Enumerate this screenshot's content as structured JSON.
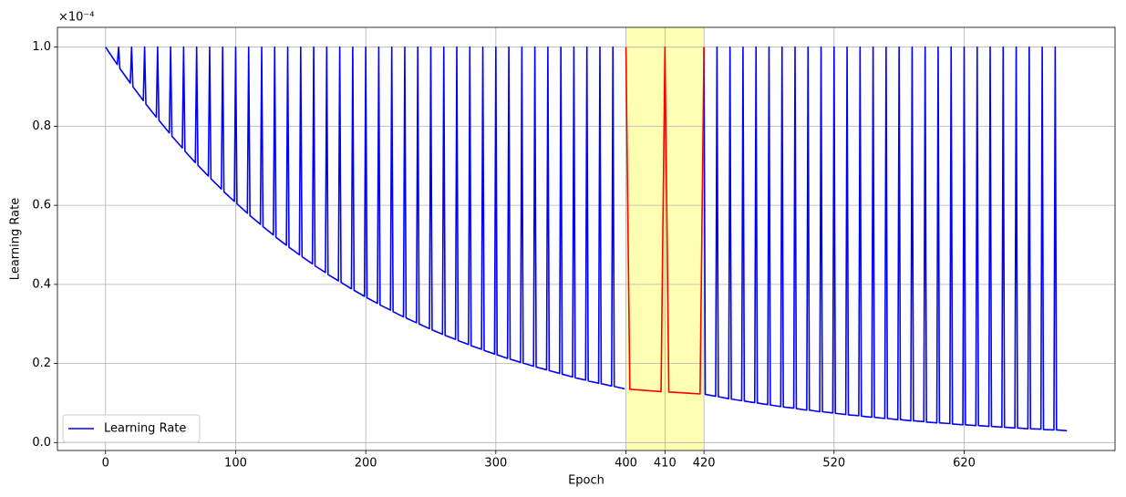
{
  "chart_data": {
    "type": "line",
    "xlabel": "Epoch",
    "ylabel": "Learning Rate",
    "y_offset_label": "×10⁻⁴",
    "xlim": [
      -37,
      776
    ],
    "ylim": [
      -0.02,
      1.05
    ],
    "xticks": [
      0,
      100,
      200,
      300,
      400,
      {
        "value": 430,
        "label": "410"
      },
      {
        "value": 460,
        "label": "420"
      },
      {
        "value": 560,
        "label": "520"
      },
      {
        "value": 660,
        "label": "620"
      }
    ],
    "yticks": [
      {
        "value": 0,
        "label": "0.0"
      },
      0.2,
      0.4,
      0.6,
      0.8,
      {
        "value": 1,
        "label": "1.0"
      }
    ],
    "grid": true,
    "legend": "lower left",
    "highlight": {
      "xlim": [
        400,
        460
      ],
      "color": "#ffffb3"
    },
    "series": [
      {
        "name": "Learning Rate",
        "color": "#0000ff",
        "x": [
          0,
          1,
          9,
          10,
          11,
          19,
          20,
          21,
          29,
          30,
          31,
          39,
          40,
          41,
          49,
          50,
          51,
          59,
          60,
          61,
          69,
          70,
          71,
          79,
          80,
          81,
          89,
          90,
          91,
          99,
          100,
          101,
          109,
          110,
          111,
          119,
          120,
          121,
          129,
          130,
          131,
          139,
          140,
          141,
          149,
          150,
          151,
          159,
          160,
          161,
          169,
          170,
          171,
          179,
          180,
          181,
          189,
          190,
          191,
          199,
          200,
          201,
          209,
          210,
          211,
          219,
          220,
          221,
          229,
          230,
          231,
          239,
          240,
          241,
          249,
          250,
          251,
          259,
          260,
          261,
          269,
          270,
          271,
          279,
          280,
          281,
          289,
          290,
          291,
          299,
          300,
          301,
          309,
          310,
          311,
          319,
          320,
          321,
          329,
          330,
          331,
          339,
          340,
          341,
          349,
          350,
          351,
          359,
          360,
          361,
          369,
          370,
          371,
          379,
          380,
          381,
          389,
          390,
          391,
          399,
          430,
          460,
          461,
          469,
          470,
          471,
          479,
          480,
          481,
          489,
          490,
          491,
          499,
          500,
          501,
          509,
          510,
          511,
          519,
          520,
          521,
          529,
          530,
          531,
          539,
          540,
          541,
          549,
          550,
          551,
          559,
          560,
          561,
          569,
          570,
          571,
          579,
          580,
          581,
          589,
          590,
          591,
          599,
          600,
          601,
          609,
          610,
          611,
          619,
          620,
          621,
          629,
          630,
          631,
          639,
          640,
          641,
          649,
          650,
          651,
          659,
          660,
          661,
          669,
          670,
          671,
          679,
          680,
          681,
          689,
          690,
          691,
          699,
          700,
          701,
          709,
          710,
          711,
          719,
          720,
          721,
          729,
          730,
          731,
          739
        ],
        "values": [
          1,
          0.995,
          0.956,
          1,
          0.946,
          0.909,
          1,
          0.9,
          0.865,
          1,
          0.856,
          0.823,
          1,
          0.815,
          0.783,
          1,
          0.775,
          0.745,
          1,
          0.737,
          0.708,
          1,
          0.701,
          0.674,
          1,
          0.667,
          0.641,
          1,
          0.634,
          0.61,
          1,
          0.604,
          0.58,
          1,
          0.574,
          0.552,
          1,
          0.546,
          0.525,
          1,
          0.519,
          0.499,
          1,
          0.494,
          0.475,
          1,
          0.47,
          0.452,
          1,
          0.447,
          0.43,
          1,
          0.425,
          0.409,
          1,
          0.405,
          0.389,
          1,
          0.385,
          0.37,
          1,
          0.366,
          0.352,
          1,
          0.348,
          0.335,
          1,
          0.331,
          0.318,
          1,
          0.315,
          0.303,
          1,
          0.3,
          0.288,
          1,
          0.285,
          0.274,
          1,
          0.271,
          0.261,
          1,
          0.258,
          0.248,
          1,
          0.245,
          0.236,
          1,
          0.233,
          0.224,
          1,
          0.222,
          0.213,
          1,
          0.211,
          0.203,
          1,
          0.201,
          0.193,
          1,
          0.191,
          0.184,
          1,
          0.182,
          0.175,
          1,
          0.173,
          0.166,
          1,
          0.164,
          0.158,
          1,
          0.156,
          0.15,
          1,
          0.149,
          0.143,
          1,
          0.142,
          0.136,
          null,
          1,
          0.122,
          0.117,
          1,
          0.116,
          0.111,
          1,
          0.11,
          0.106,
          1,
          0.105,
          0.101,
          1,
          0.1,
          0.096,
          1,
          0.095,
          0.091,
          1,
          0.09,
          0.087,
          1,
          0.086,
          0.082,
          1,
          0.082,
          0.078,
          1,
          0.078,
          0.075,
          1,
          0.074,
          0.071,
          1,
          0.07,
          0.068,
          1,
          0.067,
          0.064,
          1,
          0.064,
          0.061,
          1,
          0.061,
          0.058,
          1,
          0.058,
          0.055,
          1,
          0.055,
          0.053,
          1,
          0.052,
          0.05,
          1,
          0.05,
          0.048,
          1,
          0.047,
          0.045,
          1,
          0.045,
          0.043,
          1,
          0.043,
          0.041,
          1,
          0.041,
          0.039,
          1,
          0.039,
          0.037,
          1,
          0.037,
          0.035,
          1,
          0.035,
          0.034,
          1,
          0.033,
          0.032,
          1,
          0.032,
          0.03
        ]
      },
      {
        "color": "#ff0000",
        "x": [
          400,
          403,
          427,
          430,
          433,
          457,
          460
        ],
        "values": [
          1,
          0.135,
          0.129,
          1,
          0.128,
          0.123,
          1
        ]
      }
    ]
  }
}
